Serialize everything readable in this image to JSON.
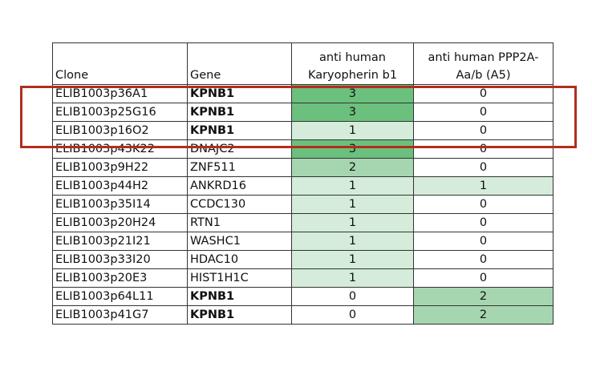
{
  "columns": [
    "Clone",
    "Gene",
    "anti human Karyopherin b1",
    "anti human PPP2A-Aa/b (A5)"
  ],
  "rows": [
    {
      "clone": "ELIB1003p36A1",
      "gene": "KPNB1",
      "kpnb1_score": "3",
      "ppp2a_score": "0",
      "gene_bold": true
    },
    {
      "clone": "ELIB1003p25G16",
      "gene": "KPNB1",
      "kpnb1_score": "3",
      "ppp2a_score": "0",
      "gene_bold": true
    },
    {
      "clone": "ELIB1003p16O2",
      "gene": "KPNB1",
      "kpnb1_score": "1",
      "ppp2a_score": "0",
      "gene_bold": true
    },
    {
      "clone": "ELIB1003p43K22",
      "gene": "DNAJC2",
      "kpnb1_score": "3",
      "ppp2a_score": "0",
      "gene_bold": false
    },
    {
      "clone": "ELIB1003p9H22",
      "gene": "ZNF511",
      "kpnb1_score": "2",
      "ppp2a_score": "0",
      "gene_bold": false
    },
    {
      "clone": "ELIB1003p44H2",
      "gene": "ANKRD16",
      "kpnb1_score": "1",
      "ppp2a_score": "1",
      "gene_bold": false
    },
    {
      "clone": "ELIB1003p35I14",
      "gene": "CCDC130",
      "kpnb1_score": "1",
      "ppp2a_score": "0",
      "gene_bold": false
    },
    {
      "clone": "ELIB1003p20H24",
      "gene": "RTN1",
      "kpnb1_score": "1",
      "ppp2a_score": "0",
      "gene_bold": false
    },
    {
      "clone": "ELIB1003p21I21",
      "gene": "WASHC1",
      "kpnb1_score": "1",
      "ppp2a_score": "0",
      "gene_bold": false
    },
    {
      "clone": "ELIB1003p33I20",
      "gene": "HDAC10",
      "kpnb1_score": "1",
      "ppp2a_score": "0",
      "gene_bold": false
    },
    {
      "clone": "ELIB1003p20E3",
      "gene": "HIST1H1C",
      "kpnb1_score": "1",
      "ppp2a_score": "0",
      "gene_bold": false
    },
    {
      "clone": "ELIB1003p64L11",
      "gene": "KPNB1",
      "kpnb1_score": "0",
      "ppp2a_score": "2",
      "gene_bold": true
    },
    {
      "clone": "ELIB1003p41G7",
      "gene": "KPNB1",
      "kpnb1_score": "0",
      "ppp2a_score": "2",
      "gene_bold": true
    }
  ],
  "score_colors": {
    "0": "#ffffff",
    "1": "#d4ecd9",
    "2": "#a6d6b0",
    "3": "#6cc07d"
  },
  "highlight_color": "#b12e1e"
}
